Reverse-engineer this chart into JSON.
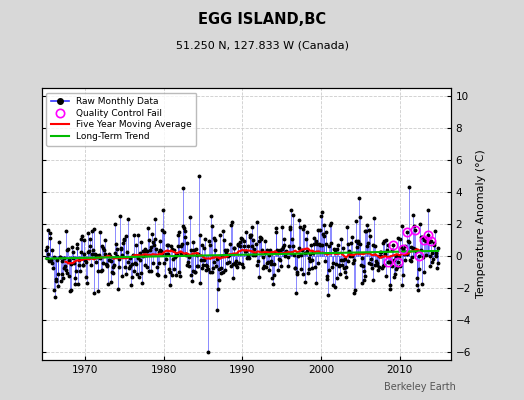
{
  "title": "EGG ISLAND,BC",
  "subtitle": "51.250 N, 127.833 W (Canada)",
  "ylabel": "Temperature Anomaly (°C)",
  "ylim": [
    -6.5,
    10.5
  ],
  "xlim": [
    1964.5,
    2016.5
  ],
  "xticks": [
    1970,
    1980,
    1990,
    2000,
    2010
  ],
  "yticks": [
    -6,
    -4,
    -2,
    0,
    2,
    4,
    6,
    8,
    10
  ],
  "bg_color": "#d8d8d8",
  "plot_bg_color": "#ffffff",
  "raw_line_color": "#3333ff",
  "raw_dot_color": "#000000",
  "ma_color": "#ff0000",
  "trend_color": "#00bb00",
  "qc_color": "#ff00ff",
  "watermark": "Berkeley Earth",
  "legend_labels": [
    "Raw Monthly Data",
    "Quality Control Fail",
    "Five Year Moving Average",
    "Long-Term Trend"
  ],
  "start_year": 1965,
  "end_year": 2014,
  "seed": 42,
  "figsize": [
    5.24,
    4.0
  ],
  "dpi": 100
}
